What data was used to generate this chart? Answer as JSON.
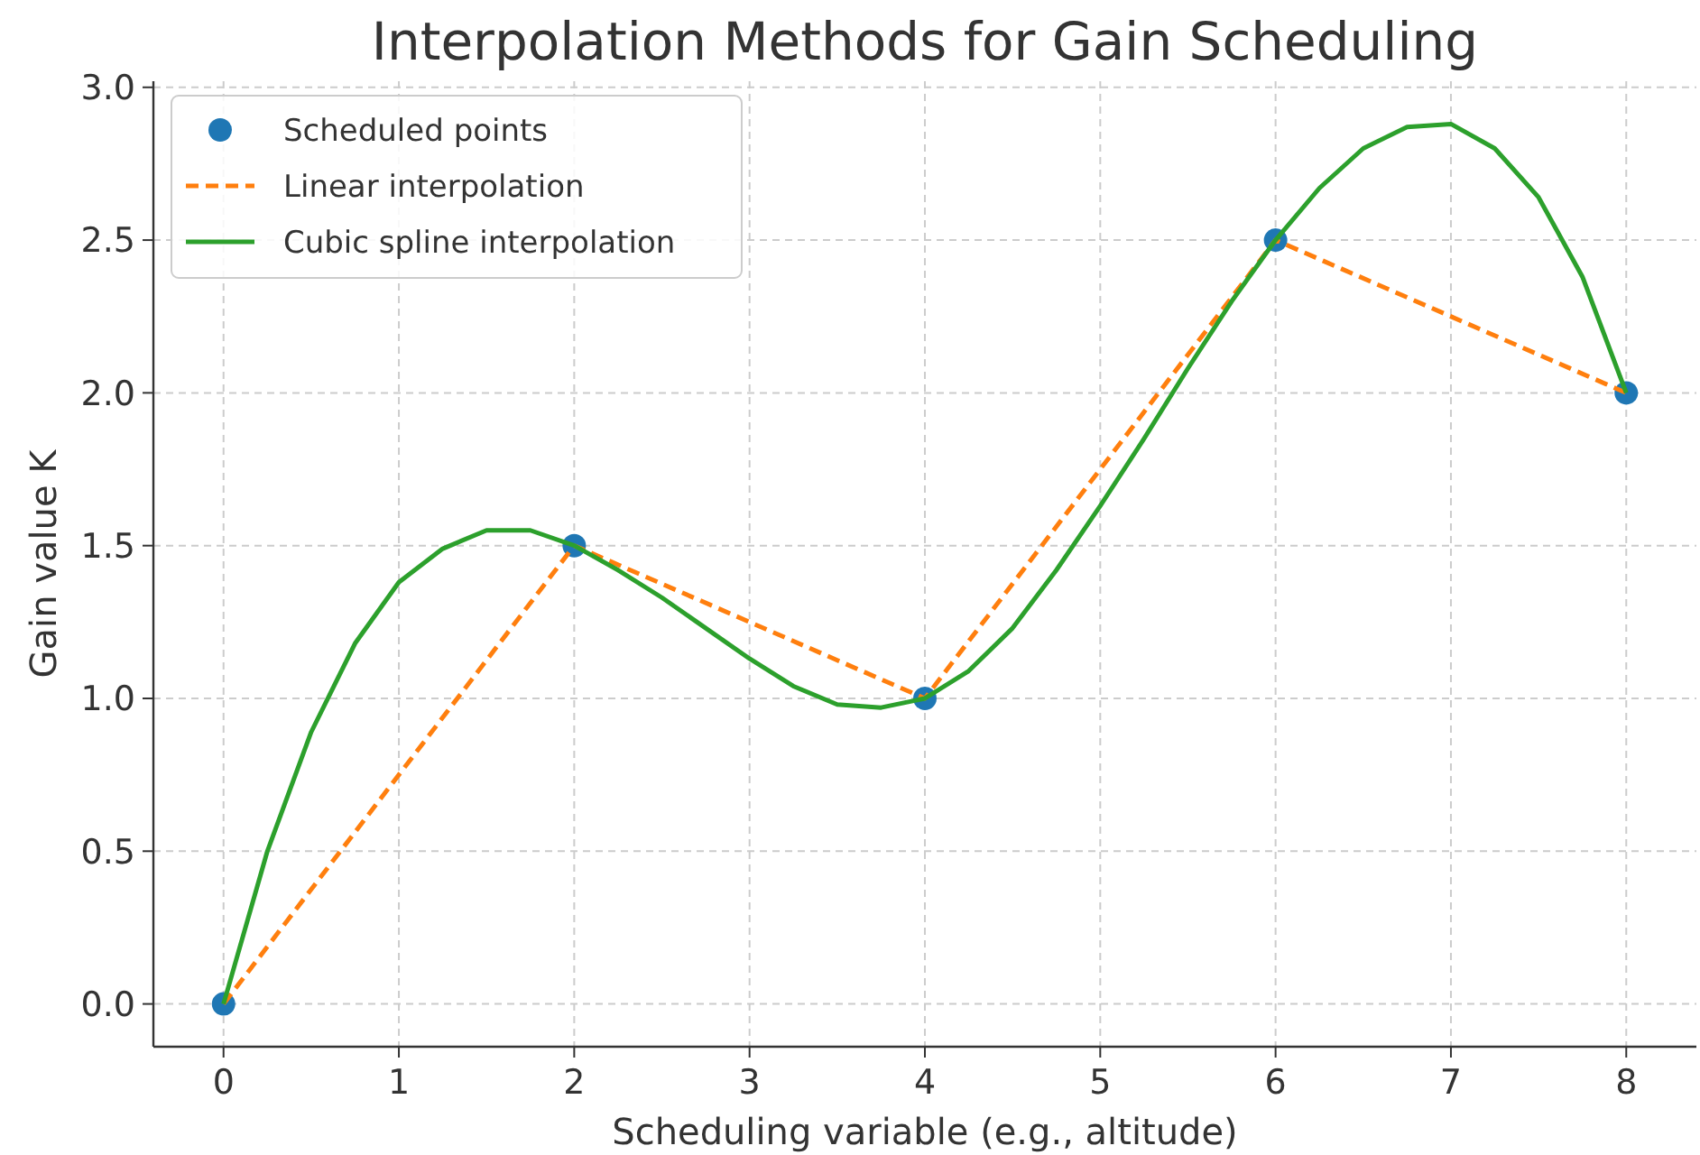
{
  "chart_data": {
    "type": "line",
    "title": "Interpolation Methods for Gain Scheduling",
    "xlabel": "Scheduling variable (e.g., altitude)",
    "ylabel": "Gain value K",
    "x": [
      0,
      2,
      4,
      6,
      8
    ],
    "xlim": [
      -0.4,
      8.4
    ],
    "xticks": [
      0,
      1,
      2,
      3,
      4,
      5,
      6,
      7,
      8
    ],
    "ylim": [
      -0.14,
      3.02
    ],
    "yticks": [
      {
        "value": 0,
        "label": "0.0"
      },
      {
        "value": 0.5,
        "label": "0.5"
      },
      {
        "value": 1,
        "label": "1.0"
      },
      {
        "value": 1.5,
        "label": "1.5"
      },
      {
        "value": 2,
        "label": "2.0"
      },
      {
        "value": 2.5,
        "label": "2.5"
      },
      {
        "value": 3,
        "label": "3.0"
      }
    ],
    "grid": true,
    "legend": "top left",
    "series": [
      {
        "name": "Scheduled points",
        "type": "scatter",
        "marker": "circle",
        "color": "#1f77b4",
        "values": [
          0,
          1.5,
          1,
          2.5,
          2
        ]
      },
      {
        "name": "Linear interpolation",
        "line_style": "dashed",
        "color": "#ff7f0e",
        "values": [
          0,
          1.5,
          1,
          2.5,
          2
        ]
      },
      {
        "name": "Cubic spline interpolation",
        "line_style": "solid",
        "color": "#2ca02c",
        "x": [
          0,
          0.25,
          0.5,
          0.75,
          1,
          1.25,
          1.5,
          1.75,
          2,
          2.25,
          2.5,
          2.75,
          3,
          3.25,
          3.5,
          3.75,
          4,
          4.25,
          4.5,
          4.75,
          5,
          5.25,
          5.5,
          5.75,
          6,
          6.25,
          6.5,
          6.75,
          7,
          7.25,
          7.5,
          7.75,
          8
        ],
        "values": [
          0,
          0.5,
          0.89,
          1.18,
          1.38,
          1.49,
          1.55,
          1.55,
          1.5,
          1.42,
          1.33,
          1.23,
          1.13,
          1.04,
          0.98,
          0.97,
          1,
          1.09,
          1.23,
          1.42,
          1.63,
          1.85,
          2.08,
          2.3,
          2.5,
          2.67,
          2.8,
          2.87,
          2.88,
          2.8,
          2.64,
          2.38,
          2
        ]
      }
    ]
  }
}
